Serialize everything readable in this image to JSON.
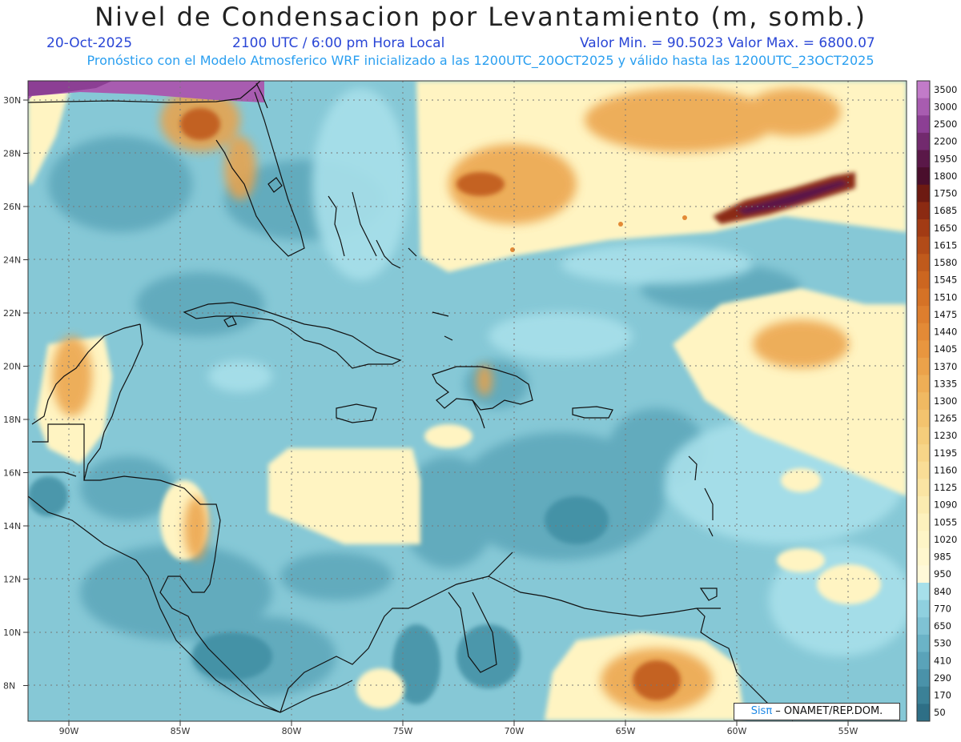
{
  "title": "Nivel de Condensacion por Levantamiento (m, somb.)",
  "date": "20-Oct-2025",
  "time": "2100 UTC / 6:00 pm Hora Local",
  "minmax": "Valor Min. = 90.5023   Valor Max. = 6800.07",
  "model_line": "Pronóstico con el Modelo Atmosferico WRF inicializado a las 1200UTC_20OCT2025 y válido hasta las   1200UTC_23OCT2025",
  "credit_prefix": "Sisπ",
  "credit_suffix": " – ONAMET/REP.DOM.",
  "lat_labels": [
    "30N",
    "28N",
    "26N",
    "24N",
    "22N",
    "20N",
    "18N",
    "16N",
    "14N",
    "12N",
    "10N",
    "8N"
  ],
  "lon_labels": [
    "90W",
    "85W",
    "80W",
    "75W",
    "70W",
    "65W",
    "60W",
    "55W"
  ],
  "colorbar": {
    "levels": [
      "3500",
      "3000",
      "2500",
      "2200",
      "1950",
      "1800",
      "1750",
      "1685",
      "1650",
      "1615",
      "1580",
      "1545",
      "1510",
      "1475",
      "1440",
      "1405",
      "1370",
      "1335",
      "1300",
      "1265",
      "1230",
      "1195",
      "1160",
      "1125",
      "1090",
      "1055",
      "1020",
      "985",
      "950",
      "840",
      "770",
      "650",
      "530",
      "410",
      "290",
      "170",
      "50"
    ],
    "colors": [
      "#c27bc9",
      "#a85cb0",
      "#8c3f94",
      "#722a6e",
      "#5a1848",
      "#4a0e2c",
      "#6d1a12",
      "#8b2a12",
      "#a23b14",
      "#b24b18",
      "#c05a1c",
      "#cc6620",
      "#d57226",
      "#dd7e2e",
      "#e38a36",
      "#e8963f",
      "#eba24a",
      "#eeae56",
      "#f0b962",
      "#f3c36e",
      "#f5cd7b",
      "#f7d588",
      "#f9dd96",
      "#fae4a3",
      "#fbebb0",
      "#fdf1bd",
      "#fef5c6",
      "#fff7ce",
      "#fff9d8",
      "#a6e0ea",
      "#8fd0df",
      "#7fc2d4",
      "#6bb3c7",
      "#5aa3b9",
      "#4a92a9",
      "#3b8197",
      "#2e6f86"
    ]
  }
}
